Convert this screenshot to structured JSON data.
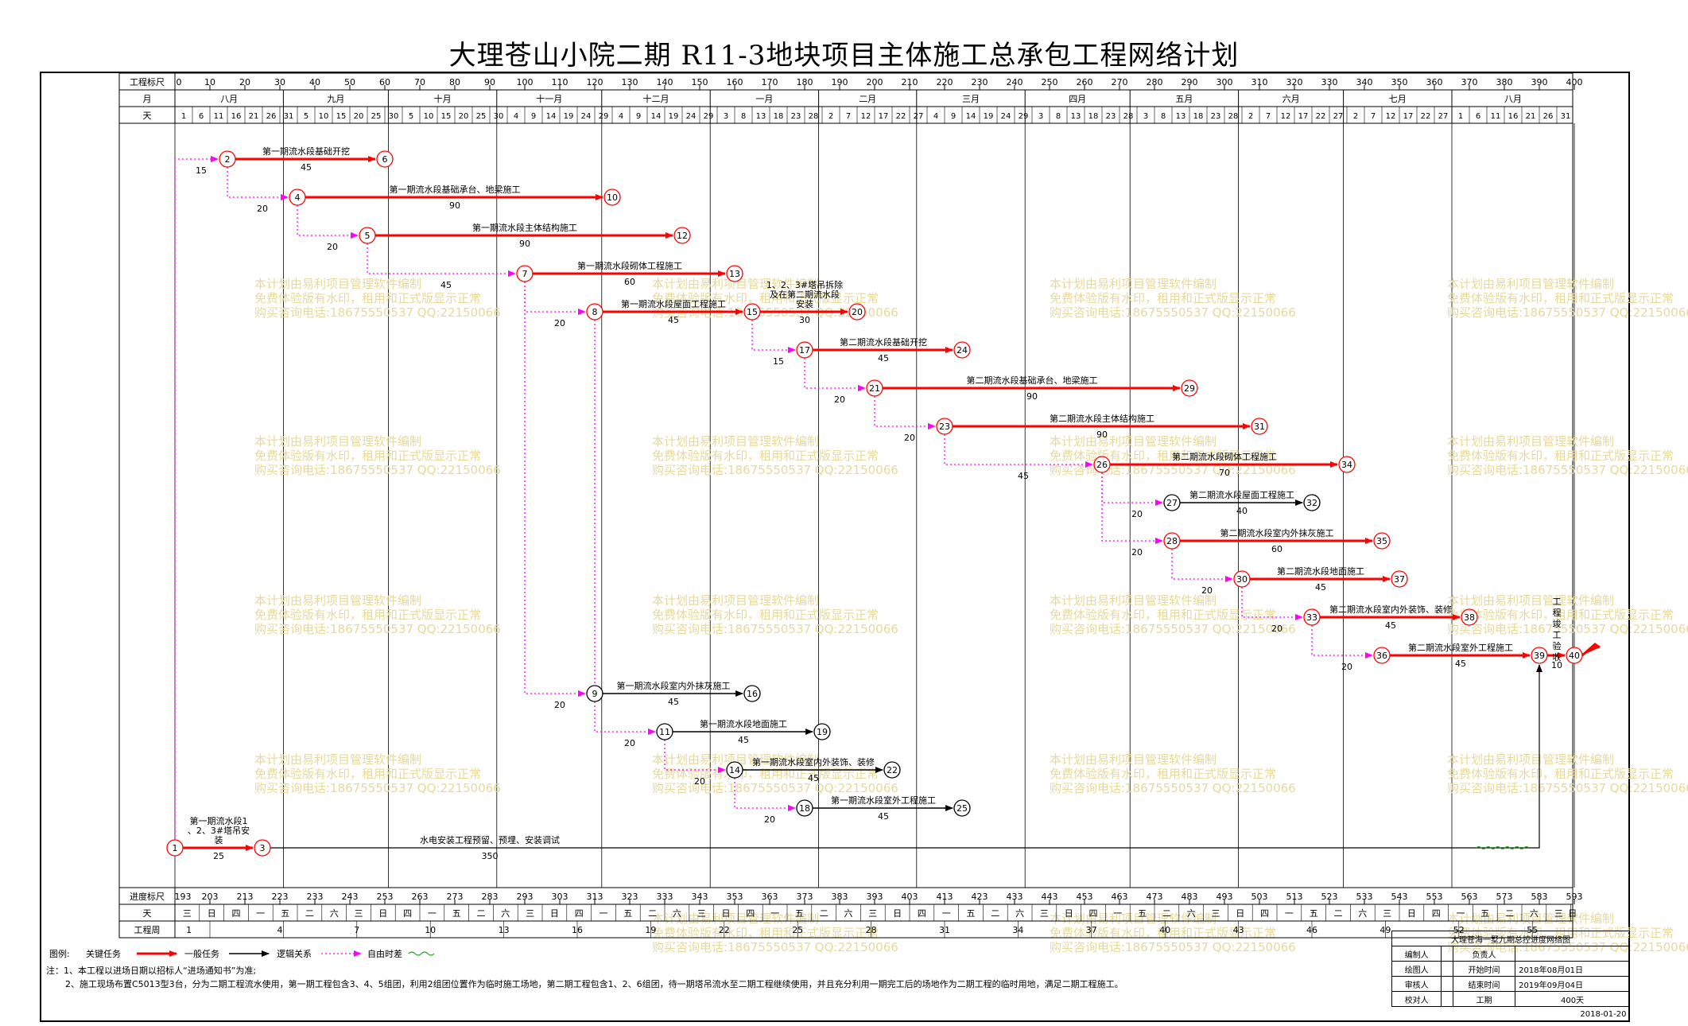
{
  "title": "大理苍山小院二期 R11-3地块项目主体施工总承包工程网络计划",
  "header": {
    "scale_label": "工程标尺",
    "month_label": "月",
    "day_label": "天",
    "scale_values": [
      "0",
      "10",
      "20",
      "30",
      "40",
      "50",
      "60",
      "70",
      "80",
      "90",
      "100",
      "110",
      "120",
      "130",
      "140",
      "150",
      "160",
      "170",
      "180",
      "190",
      "200",
      "210",
      "220",
      "230",
      "240",
      "250",
      "260",
      "270",
      "280",
      "290",
      "300",
      "310",
      "320",
      "330",
      "340",
      "350",
      "360",
      "370",
      "380",
      "390",
      "400"
    ],
    "months": [
      {
        "name": "八月",
        "start": 0,
        "end": 31
      },
      {
        "name": "九月",
        "start": 31,
        "end": 61
      },
      {
        "name": "十月",
        "start": 61,
        "end": 92
      },
      {
        "name": "十一月",
        "start": 92,
        "end": 122
      },
      {
        "name": "十二月",
        "start": 122,
        "end": 153
      },
      {
        "name": "一月",
        "start": 153,
        "end": 184
      },
      {
        "name": "二月",
        "start": 184,
        "end": 212
      },
      {
        "name": "三月",
        "start": 212,
        "end": 243
      },
      {
        "name": "四月",
        "start": 243,
        "end": 273
      },
      {
        "name": "五月",
        "start": 273,
        "end": 304
      },
      {
        "name": "六月",
        "start": 304,
        "end": 334
      },
      {
        "name": "七月",
        "start": 334,
        "end": 365
      },
      {
        "name": "八月",
        "start": 365,
        "end": 400
      }
    ],
    "days": [
      {
        "d": "1",
        "p": 0
      },
      {
        "d": "6",
        "p": 5
      },
      {
        "d": "11",
        "p": 10
      },
      {
        "d": "16",
        "p": 15
      },
      {
        "d": "21",
        "p": 20
      },
      {
        "d": "26",
        "p": 25
      },
      {
        "d": "31",
        "p": 30
      },
      {
        "d": "5",
        "p": 35
      },
      {
        "d": "10",
        "p": 40
      },
      {
        "d": "15",
        "p": 45
      },
      {
        "d": "20",
        "p": 50
      },
      {
        "d": "25",
        "p": 55
      },
      {
        "d": "30",
        "p": 60
      },
      {
        "d": "5",
        "p": 65
      },
      {
        "d": "10",
        "p": 70
      },
      {
        "d": "15",
        "p": 75
      },
      {
        "d": "20",
        "p": 80
      },
      {
        "d": "25",
        "p": 85
      },
      {
        "d": "30",
        "p": 90
      },
      {
        "d": "4",
        "p": 95
      },
      {
        "d": "9",
        "p": 100
      },
      {
        "d": "14",
        "p": 105
      },
      {
        "d": "19",
        "p": 110
      },
      {
        "d": "24",
        "p": 115
      },
      {
        "d": "29",
        "p": 120
      },
      {
        "d": "4",
        "p": 125
      },
      {
        "d": "9",
        "p": 130
      },
      {
        "d": "14",
        "p": 135
      },
      {
        "d": "19",
        "p": 140
      },
      {
        "d": "24",
        "p": 145
      },
      {
        "d": "29",
        "p": 150
      },
      {
        "d": "3",
        "p": 155
      },
      {
        "d": "8",
        "p": 160
      },
      {
        "d": "13",
        "p": 165
      },
      {
        "d": "18",
        "p": 170
      },
      {
        "d": "23",
        "p": 175
      },
      {
        "d": "28",
        "p": 180
      },
      {
        "d": "2",
        "p": 185
      },
      {
        "d": "7",
        "p": 190
      },
      {
        "d": "12",
        "p": 195
      },
      {
        "d": "17",
        "p": 200
      },
      {
        "d": "22",
        "p": 205
      },
      {
        "d": "27",
        "p": 210
      },
      {
        "d": "4",
        "p": 215
      },
      {
        "d": "9",
        "p": 220
      },
      {
        "d": "14",
        "p": 225
      },
      {
        "d": "19",
        "p": 230
      },
      {
        "d": "24",
        "p": 235
      },
      {
        "d": "29",
        "p": 240
      },
      {
        "d": "3",
        "p": 245
      },
      {
        "d": "8",
        "p": 250
      },
      {
        "d": "13",
        "p": 255
      },
      {
        "d": "18",
        "p": 260
      },
      {
        "d": "23",
        "p": 265
      },
      {
        "d": "28",
        "p": 270
      },
      {
        "d": "3",
        "p": 275
      },
      {
        "d": "8",
        "p": 280
      },
      {
        "d": "13",
        "p": 285
      },
      {
        "d": "18",
        "p": 290
      },
      {
        "d": "23",
        "p": 295
      },
      {
        "d": "28",
        "p": 300
      },
      {
        "d": "2",
        "p": 305
      },
      {
        "d": "7",
        "p": 310
      },
      {
        "d": "12",
        "p": 315
      },
      {
        "d": "17",
        "p": 320
      },
      {
        "d": "22",
        "p": 325
      },
      {
        "d": "27",
        "p": 330
      },
      {
        "d": "2",
        "p": 335
      },
      {
        "d": "7",
        "p": 340
      },
      {
        "d": "12",
        "p": 345
      },
      {
        "d": "17",
        "p": 350
      },
      {
        "d": "22",
        "p": 355
      },
      {
        "d": "27",
        "p": 360
      },
      {
        "d": "1",
        "p": 365
      },
      {
        "d": "6",
        "p": 370
      },
      {
        "d": "11",
        "p": 375
      },
      {
        "d": "16",
        "p": 380
      },
      {
        "d": "21",
        "p": 385
      },
      {
        "d": "26",
        "p": 390
      },
      {
        "d": "31",
        "p": 395
      }
    ]
  },
  "footer": {
    "scale_label": "进度标尺",
    "day_label": "天",
    "week_label": "工程周",
    "progress_values": [
      "193",
      "203",
      "213",
      "223",
      "233",
      "243",
      "253",
      "263",
      "273",
      "283",
      "293",
      "303",
      "313",
      "323",
      "333",
      "343",
      "353",
      "363",
      "373",
      "383",
      "393",
      "403",
      "413",
      "423",
      "433",
      "443",
      "453",
      "463",
      "473",
      "483",
      "493",
      "503",
      "513",
      "523",
      "533",
      "543",
      "553",
      "563",
      "573",
      "583",
      "593"
    ],
    "weekdays": [
      "三",
      "日",
      "四",
      "一",
      "五",
      "二",
      "六",
      "三",
      "日",
      "四",
      "一",
      "五",
      "二",
      "六",
      "三",
      "日",
      "四",
      "一",
      "五",
      "二",
      "六",
      "三",
      "日",
      "四",
      "一",
      "五",
      "二",
      "六",
      "三",
      "日",
      "四",
      "一",
      "五",
      "二",
      "六",
      "三",
      "日",
      "四",
      "一",
      "五",
      "二",
      "六",
      "三",
      "日",
      "四",
      "一",
      "五",
      "二",
      "六",
      "三",
      "日",
      "四",
      "一",
      "五",
      "二",
      "六",
      "三",
      "日"
    ],
    "weeks": [
      {
        "n": "1",
        "p": 4
      },
      {
        "n": "4",
        "p": 30
      },
      {
        "n": "7",
        "p": 52
      },
      {
        "n": "10",
        "p": 73
      },
      {
        "n": "13",
        "p": 94
      },
      {
        "n": "16",
        "p": 115
      },
      {
        "n": "19",
        "p": 136
      },
      {
        "n": "22",
        "p": 157
      },
      {
        "n": "25",
        "p": 178
      },
      {
        "n": "28",
        "p": 199
      },
      {
        "n": "31",
        "p": 220
      },
      {
        "n": "34",
        "p": 241
      },
      {
        "n": "37",
        "p": 262
      },
      {
        "n": "40",
        "p": 283
      },
      {
        "n": "43",
        "p": 304
      },
      {
        "n": "46",
        "p": 325
      },
      {
        "n": "49",
        "p": 346
      },
      {
        "n": "52",
        "p": 367
      },
      {
        "n": "55",
        "p": 388
      }
    ]
  },
  "network": {
    "nodes": [
      {
        "id": "1",
        "day": 0,
        "row": 20,
        "critical": true
      },
      {
        "id": "2",
        "day": 15,
        "row": 1,
        "critical": true
      },
      {
        "id": "3",
        "day": 25,
        "row": 20,
        "critical": true
      },
      {
        "id": "4",
        "day": 35,
        "row": 2,
        "critical": true
      },
      {
        "id": "5",
        "day": 55,
        "row": 3,
        "critical": true
      },
      {
        "id": "6",
        "day": 60,
        "row": 1,
        "critical": true
      },
      {
        "id": "7",
        "day": 100,
        "row": 4,
        "critical": true
      },
      {
        "id": "8",
        "day": 120,
        "row": 5,
        "critical": true
      },
      {
        "id": "9",
        "day": 120,
        "row": 15,
        "critical": false
      },
      {
        "id": "10",
        "day": 125,
        "row": 2,
        "critical": true
      },
      {
        "id": "11",
        "day": 140,
        "row": 16,
        "critical": false
      },
      {
        "id": "12",
        "day": 145,
        "row": 3,
        "critical": true
      },
      {
        "id": "13",
        "day": 160,
        "row": 4,
        "critical": true
      },
      {
        "id": "14",
        "day": 160,
        "row": 17,
        "critical": false
      },
      {
        "id": "15",
        "day": 165,
        "row": 5,
        "critical": true
      },
      {
        "id": "16",
        "day": 165,
        "row": 15,
        "critical": false
      },
      {
        "id": "17",
        "day": 180,
        "row": 6,
        "critical": true
      },
      {
        "id": "18",
        "day": 180,
        "row": 18,
        "critical": false
      },
      {
        "id": "19",
        "day": 185,
        "row": 16,
        "critical": false
      },
      {
        "id": "20",
        "day": 195,
        "row": 5,
        "critical": true
      },
      {
        "id": "21",
        "day": 200,
        "row": 7,
        "critical": true
      },
      {
        "id": "22",
        "day": 205,
        "row": 17,
        "critical": false
      },
      {
        "id": "23",
        "day": 220,
        "row": 8,
        "critical": true
      },
      {
        "id": "24",
        "day": 225,
        "row": 6,
        "critical": true
      },
      {
        "id": "25",
        "day": 225,
        "row": 18,
        "critical": false
      },
      {
        "id": "26",
        "day": 265,
        "row": 9,
        "critical": true
      },
      {
        "id": "27",
        "day": 285,
        "row": 10,
        "critical": false
      },
      {
        "id": "28",
        "day": 285,
        "row": 11,
        "critical": true
      },
      {
        "id": "29",
        "day": 290,
        "row": 7,
        "critical": true
      },
      {
        "id": "30",
        "day": 305,
        "row": 12,
        "critical": true
      },
      {
        "id": "31",
        "day": 310,
        "row": 8,
        "critical": true
      },
      {
        "id": "32",
        "day": 325,
        "row": 10,
        "critical": false
      },
      {
        "id": "33",
        "day": 325,
        "row": 13,
        "critical": true
      },
      {
        "id": "34",
        "day": 335,
        "row": 9,
        "critical": true
      },
      {
        "id": "35",
        "day": 345,
        "row": 11,
        "critical": true
      },
      {
        "id": "36",
        "day": 345,
        "row": 14,
        "critical": true
      },
      {
        "id": "37",
        "day": 350,
        "row": 12,
        "critical": true
      },
      {
        "id": "38",
        "day": 370,
        "row": 13,
        "critical": true
      },
      {
        "id": "39",
        "day": 390,
        "row": 14,
        "critical": true
      },
      {
        "id": "40",
        "day": 400,
        "row": 14,
        "critical": true
      }
    ],
    "activities": [
      {
        "from": "2",
        "to": "6",
        "name": "第一期流水段基础开挖",
        "dur": "45",
        "type": "critical"
      },
      {
        "from": "4",
        "to": "10",
        "name": "第一期流水段基础承台、地梁施工",
        "dur": "90",
        "type": "critical"
      },
      {
        "from": "5",
        "to": "12",
        "name": "第一期流水段主体结构施工",
        "dur": "90",
        "type": "critical"
      },
      {
        "from": "7",
        "to": "13",
        "name": "第一期流水段砌体工程施工",
        "dur": "60",
        "type": "critical"
      },
      {
        "from": "8",
        "to": "15",
        "name": "第一期流水段屋面工程施工",
        "dur": "45",
        "type": "critical"
      },
      {
        "from": "15",
        "to": "20",
        "name": "1、2、3#塔吊拆除及在第二期流水段安装",
        "dur": "30",
        "type": "critical"
      },
      {
        "from": "17",
        "to": "24",
        "name": "第二期流水段基础开挖",
        "dur": "45",
        "type": "critical"
      },
      {
        "from": "21",
        "to": "29",
        "name": "第二期流水段基础承台、地梁施工",
        "dur": "90",
        "type": "critical"
      },
      {
        "from": "23",
        "to": "31",
        "name": "第二期流水段主体结构施工",
        "dur": "90",
        "type": "critical"
      },
      {
        "from": "26",
        "to": "34",
        "name": "第二期流水段砌体工程施工",
        "dur": "70",
        "type": "critical"
      },
      {
        "from": "27",
        "to": "32",
        "name": "第二期流水段屋面工程施工",
        "dur": "40",
        "type": "normal"
      },
      {
        "from": "28",
        "to": "35",
        "name": "第二期流水段室内外抹灰施工",
        "dur": "60",
        "type": "critical"
      },
      {
        "from": "30",
        "to": "37",
        "name": "第二期流水段地面施工",
        "dur": "45",
        "type": "critical"
      },
      {
        "from": "33",
        "to": "38",
        "name": "第二期流水段室内外装饰、装修",
        "dur": "45",
        "type": "critical"
      },
      {
        "from": "36",
        "to": "39",
        "name": "第二期流水段室外工程施工",
        "dur": "45",
        "type": "critical"
      },
      {
        "from": "39",
        "to": "40",
        "name": "工程竣工验收",
        "dur": "10",
        "type": "critical"
      },
      {
        "from": "9",
        "to": "16",
        "name": "第一期流水段室内外抹灰施工",
        "dur": "45",
        "type": "normal"
      },
      {
        "from": "11",
        "to": "19",
        "name": "第一期流水段地面施工",
        "dur": "45",
        "type": "normal"
      },
      {
        "from": "14",
        "to": "22",
        "name": "第一期流水段室内外装饰、装修",
        "dur": "45",
        "type": "normal"
      },
      {
        "from": "18",
        "to": "25",
        "name": "第一期流水段室外工程施工",
        "dur": "45",
        "type": "normal"
      },
      {
        "from": "1",
        "to": "3",
        "name": "第一期流水段1、2、3#塔吊安装",
        "dur": "25",
        "type": "critical"
      },
      {
        "from": "3",
        "to": "39",
        "name": "水电安装工程预留、预埋、安装调试",
        "dur": "350",
        "type": "normal"
      }
    ],
    "dummies": [
      {
        "from": "1",
        "to": "2",
        "dur": "15"
      },
      {
        "from": "2",
        "to": "4",
        "dur": "20"
      },
      {
        "from": "4",
        "to": "5",
        "dur": "20"
      },
      {
        "from": "5",
        "to": "7",
        "dur": "45"
      },
      {
        "from": "7",
        "to": "8",
        "dur": "20"
      },
      {
        "from": "7",
        "to": "9",
        "dur": "20"
      },
      {
        "from": "8",
        "to": "11",
        "dur": "20"
      },
      {
        "from": "11",
        "to": "14",
        "dur": "20"
      },
      {
        "from": "14",
        "to": "18",
        "dur": "20"
      },
      {
        "from": "15",
        "to": "17",
        "dur": "15"
      },
      {
        "from": "17",
        "to": "21",
        "dur": "20"
      },
      {
        "from": "21",
        "to": "23",
        "dur": "20"
      },
      {
        "from": "23",
        "to": "26",
        "dur": "45"
      },
      {
        "from": "26",
        "to": "27",
        "dur": "20"
      },
      {
        "from": "26",
        "to": "28",
        "dur": "20"
      },
      {
        "from": "28",
        "to": "30",
        "dur": "20"
      },
      {
        "from": "30",
        "to": "33",
        "dur": "20"
      },
      {
        "from": "33",
        "to": "36",
        "dur": "20"
      }
    ]
  },
  "watermark_lines": [
    "本计划由易利项目管理软件编制",
    "免费体验版有水印，租用和正式版显示正常",
    "购买咨询电话:18675550537 QQ:22150066"
  ],
  "legend": {
    "label": "图例:",
    "critical": "关键任务",
    "normal": "一般任务",
    "logic": "逻辑关系",
    "free_float": "自由时差"
  },
  "notes": [
    "注：1、本工程以进场日期以招标人“进场通知书”为准;",
    "2、施工现场布置C5013型3台，分为二期工程流水使用，第一期工程包含3、4、5组团，利用2组团位置作为临时施工场地，第二期工程包含1、2、6组团，待一期塔吊流水至二期工程继续使用，并且充分利用一期完工后的场地作为二期工程的临时用地，满足二期工程施工。"
  ],
  "title_block": {
    "name": "大理苍海一墅九期总控进度网络图",
    "editor": "编制人",
    "drawer": "绘图人",
    "reviewer": "审核人",
    "checker": "校对人",
    "owner": "负责人",
    "start_label": "开始时间",
    "start": "2018年08月01日",
    "end_label": "结束时间",
    "end": "2019年09月04日",
    "duration_label": "工期",
    "duration": "400天",
    "date": "2018-01-20"
  },
  "colors": {
    "critical": "#ff0000",
    "normal": "#000000",
    "dummy": "#ff00ff",
    "watermark": "#e8d99a",
    "grid": "#000000"
  }
}
